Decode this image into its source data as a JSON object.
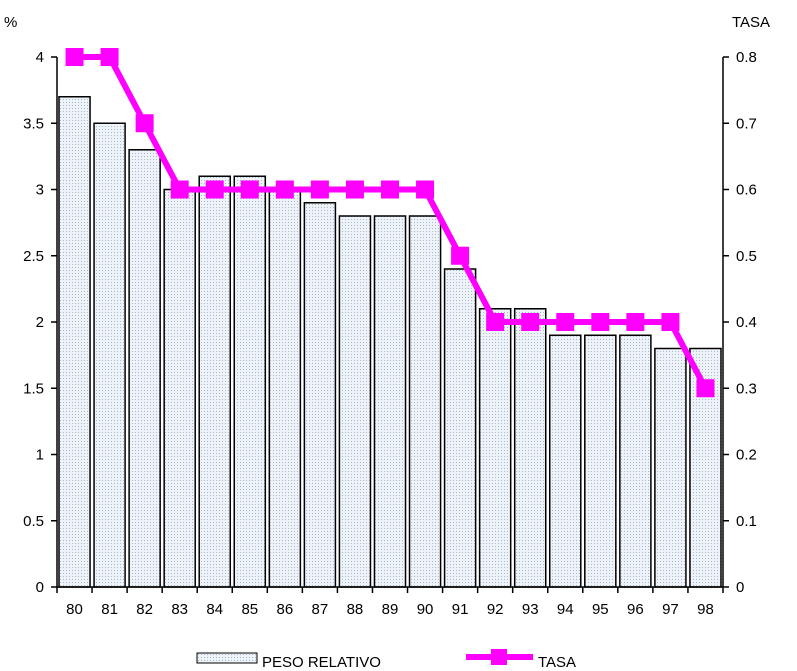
{
  "chart_data": {
    "type": "bar",
    "categories": [
      "80",
      "81",
      "82",
      "83",
      "84",
      "85",
      "86",
      "87",
      "88",
      "89",
      "90",
      "91",
      "92",
      "93",
      "94",
      "95",
      "96",
      "97",
      "98"
    ],
    "series": [
      {
        "name": "PESO RELATIVO",
        "type": "bar",
        "axis": "left",
        "values": [
          3.7,
          3.5,
          3.3,
          3.0,
          3.1,
          3.1,
          3.0,
          2.9,
          2.8,
          2.8,
          2.8,
          2.4,
          2.1,
          2.1,
          1.9,
          1.9,
          1.9,
          1.8,
          1.8
        ]
      },
      {
        "name": "TASA",
        "type": "line",
        "axis": "right",
        "values": [
          0.8,
          0.8,
          0.7,
          0.6,
          0.6,
          0.6,
          0.6,
          0.6,
          0.6,
          0.6,
          0.6,
          0.5,
          0.4,
          0.4,
          0.4,
          0.4,
          0.4,
          0.4,
          0.3
        ]
      }
    ],
    "y_left": {
      "label": "%",
      "ylim": [
        0,
        4
      ],
      "ticks": [
        "0",
        "0.5",
        "1",
        "1.5",
        "2",
        "2.5",
        "3",
        "3.5",
        "4"
      ]
    },
    "y_right": {
      "label": "TASA",
      "ylim": [
        0,
        0.8
      ],
      "ticks": [
        "0",
        "0.1",
        "0.2",
        "0.3",
        "0.4",
        "0.5",
        "0.6",
        "0.7",
        "0.8"
      ]
    },
    "legend_position": "bottom",
    "colors": {
      "bar_fill": "#e6edf5",
      "bar_stroke": "#000000",
      "line": "#ff00ff"
    }
  }
}
